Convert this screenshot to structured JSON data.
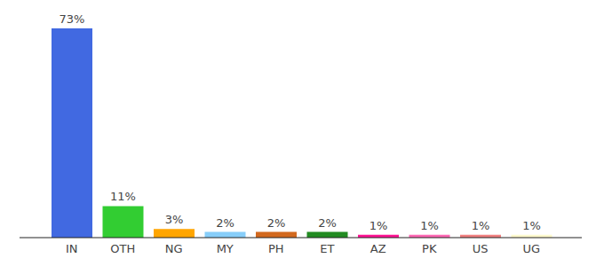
{
  "chart_data": {
    "type": "bar",
    "categories": [
      "IN",
      "OTH",
      "NG",
      "MY",
      "PH",
      "ET",
      "AZ",
      "PK",
      "US",
      "UG"
    ],
    "values": [
      73,
      11,
      3,
      2,
      2,
      2,
      1,
      1,
      1,
      1
    ],
    "value_labels": [
      "73%",
      "11%",
      "3%",
      "2%",
      "2%",
      "2%",
      "1%",
      "1%",
      "1%",
      "1%"
    ],
    "colors": [
      "#4169e1",
      "#32cd32",
      "#ffa500",
      "#87cefa",
      "#d2691e",
      "#228b22",
      "#ff1493",
      "#ff69b4",
      "#f08080",
      "#fffacd"
    ],
    "data_labels": true,
    "tick_labels": "x"
  }
}
